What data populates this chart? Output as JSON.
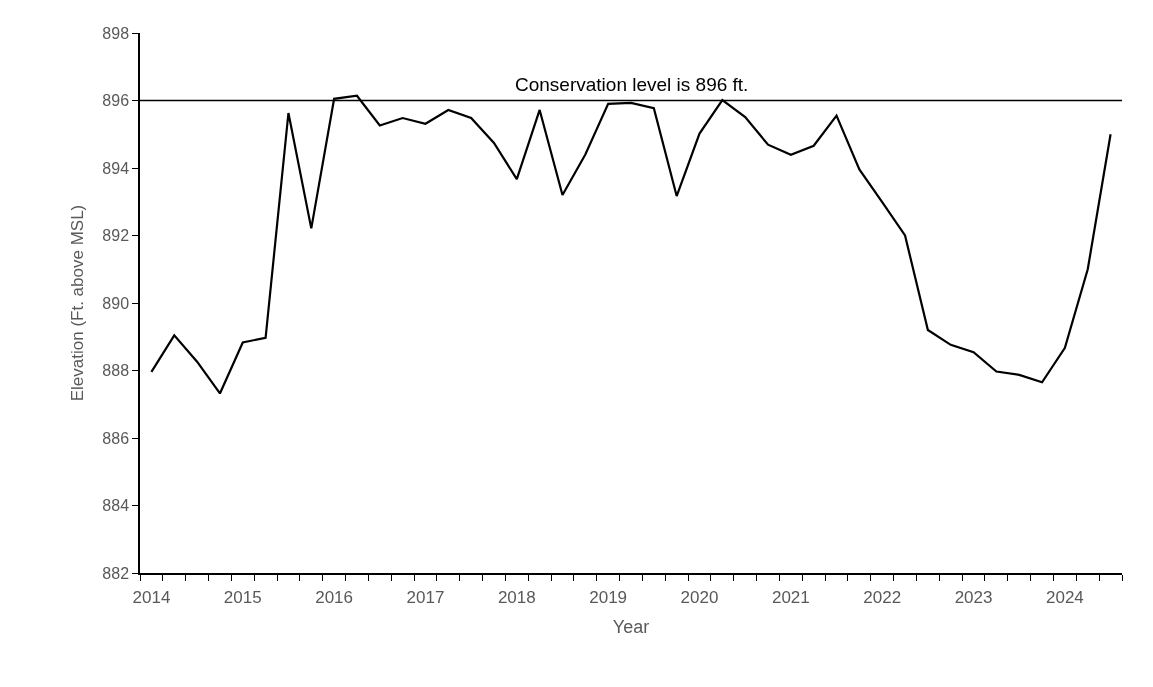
{
  "chart_data": {
    "type": "line",
    "xlabel": "Year",
    "ylabel": "Elevation (Ft. above MSL)",
    "categories": [
      "2014",
      null,
      null,
      null,
      "2015",
      null,
      null,
      null,
      "2016",
      null,
      null,
      null,
      "2017",
      null,
      null,
      null,
      "2018",
      null,
      null,
      null,
      "2019",
      null,
      null,
      null,
      "2020",
      null,
      null,
      null,
      "2021",
      null,
      null,
      null,
      "2022",
      null,
      null,
      null,
      "2023",
      null,
      null,
      null,
      "2024",
      null,
      null
    ],
    "series": [
      {
        "color": "#000000",
        "values": [
          887.96,
          889.04,
          888.26,
          887.32,
          888.83,
          888.97,
          895.63,
          892.21,
          896.05,
          896.14,
          895.26,
          895.48,
          895.31,
          895.72,
          895.48,
          894.74,
          893.67,
          895.72,
          893.2,
          894.4,
          895.9,
          895.93,
          895.77,
          893.17,
          895.02,
          896.01,
          895.51,
          894.69,
          894.39,
          894.66,
          895.55,
          893.96,
          892.99,
          892.0,
          889.2,
          888.76,
          888.54,
          887.97,
          887.87,
          887.65,
          888.67,
          891.0,
          895.0
        ]
      }
    ],
    "ylim": [
      882,
      898
    ],
    "yticks": [
      882,
      884,
      886,
      888,
      890,
      892,
      894,
      896,
      898
    ],
    "ref_lines": [
      {
        "axis": "y",
        "value": 896,
        "label": "Conservation level is 896 ft.",
        "color": "#000000"
      }
    ],
    "marker": "none",
    "line_style": "solid"
  }
}
